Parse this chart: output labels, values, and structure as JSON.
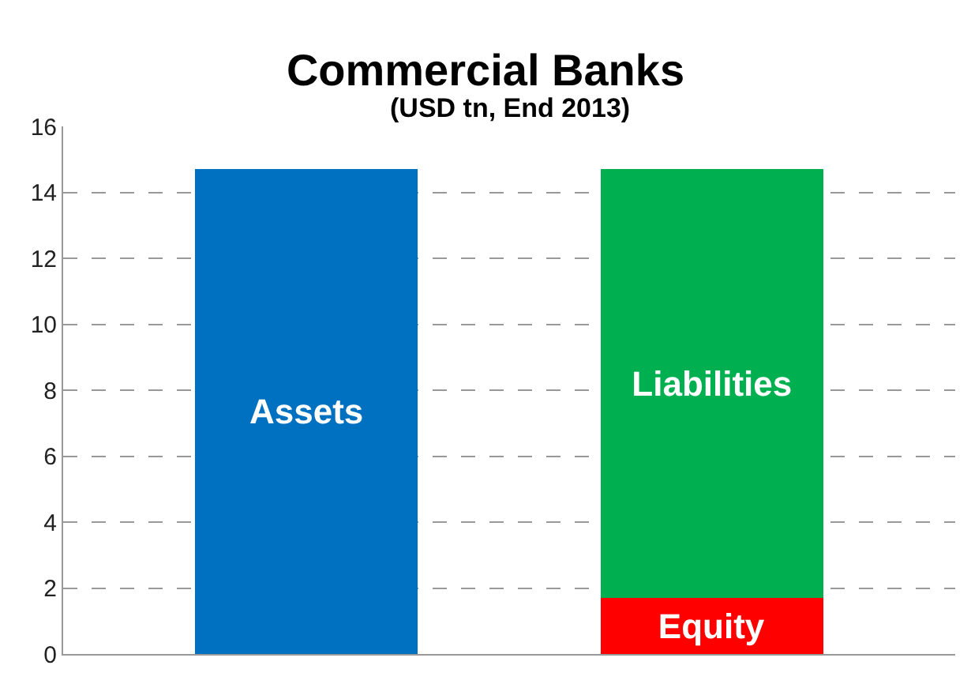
{
  "chart_data": {
    "type": "bar",
    "title": "Commercial Banks",
    "subtitle": "(USD tn, End 2013)",
    "categories": [
      null,
      null
    ],
    "stacked": true,
    "series": [
      {
        "name": "Assets",
        "color": "#0070c0",
        "values": [
          14.7,
          null
        ]
      },
      {
        "name": "Equity",
        "color": "#ff0000",
        "values": [
          null,
          1.7
        ]
      },
      {
        "name": "Liabilities",
        "color": "#00b050",
        "values": [
          null,
          13.0
        ]
      }
    ],
    "ylim": [
      0,
      16
    ],
    "yticks": [
      0,
      2,
      4,
      6,
      8,
      10,
      12,
      14,
      16
    ],
    "grid": "y",
    "legend": false,
    "tick_labels": "y"
  }
}
